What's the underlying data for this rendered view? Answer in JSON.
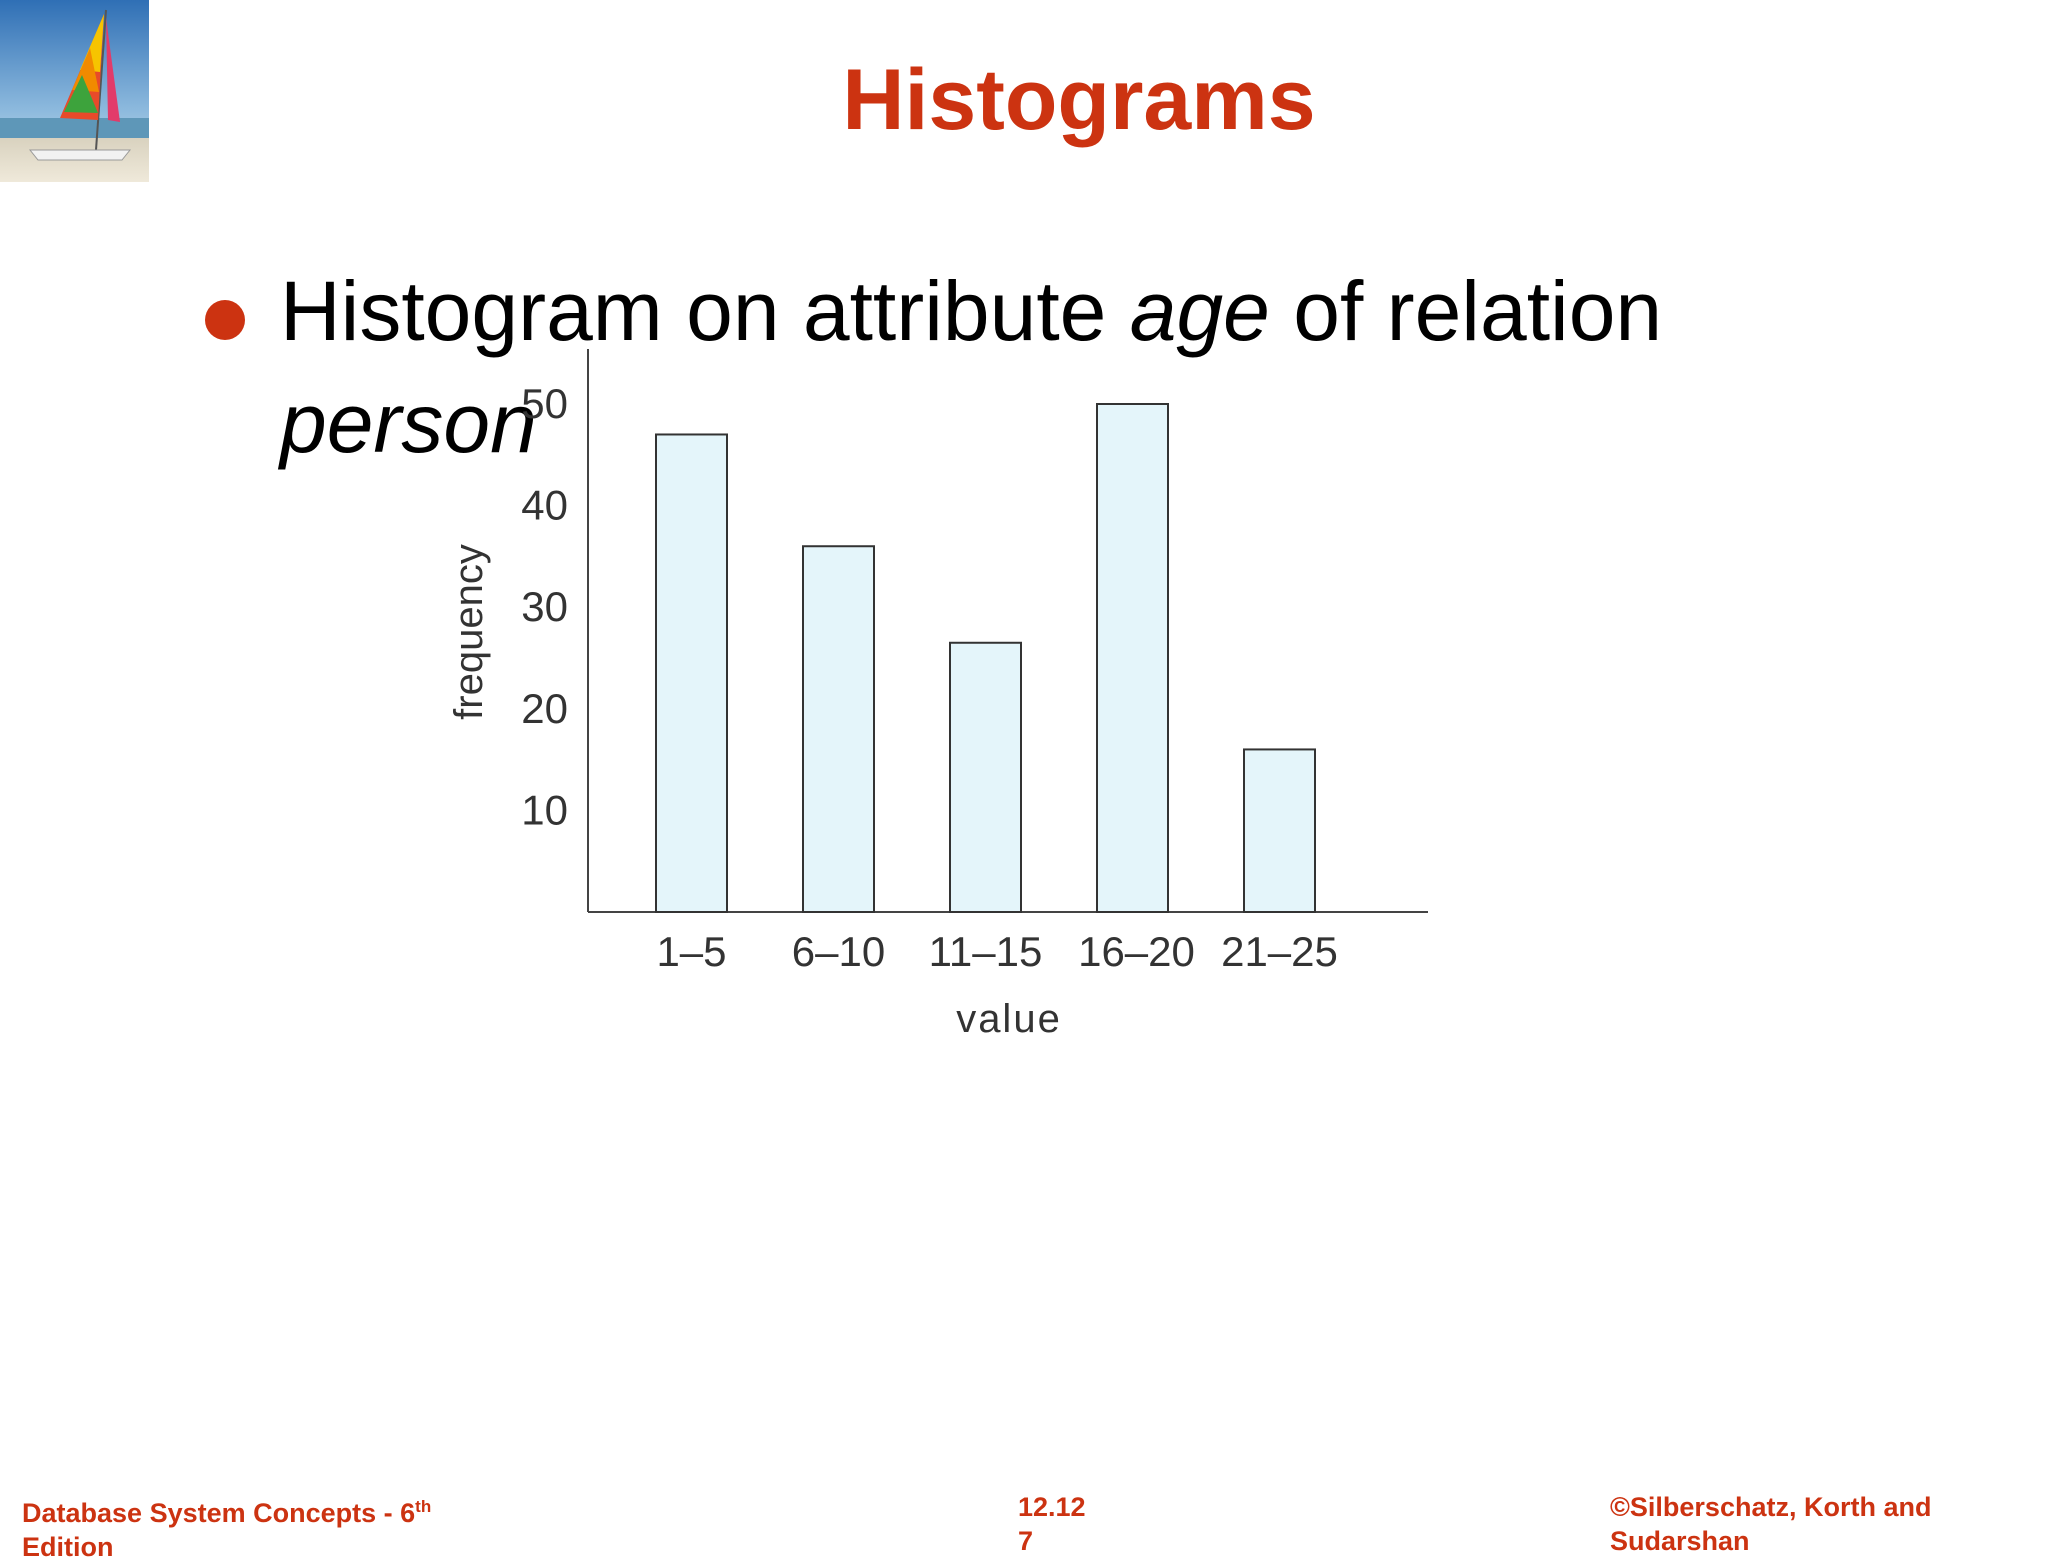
{
  "slide": {
    "title": "Histograms",
    "bullet": {
      "prefix": "Histogram on attribute ",
      "italic1": "age",
      "middle": " of relation",
      "italic2": "person"
    }
  },
  "logo": {
    "icon": "sailboat-icon"
  },
  "footer": {
    "left": "Database System Concepts - 6",
    "left_sup": "th",
    "left_cont": "Edition",
    "center": "12.12",
    "center_cont": "7",
    "right": "©Silberschatz, Korth and",
    "right_cont": "Sudarshan"
  },
  "colors": {
    "accent": "#cc3311",
    "bar_fill": "#e4f5fa",
    "bar_stroke": "#333333",
    "axis": "#444444"
  },
  "chart_data": {
    "type": "bar",
    "categories": [
      "1–5",
      "6–10",
      "11–15",
      "16–20",
      "21–25"
    ],
    "values": [
      47,
      36,
      26.5,
      50,
      16
    ],
    "xlabel": "value",
    "ylabel": "frequency",
    "yticks": [
      10,
      20,
      30,
      40,
      50
    ],
    "ylim": [
      0,
      55
    ],
    "grid": false
  }
}
